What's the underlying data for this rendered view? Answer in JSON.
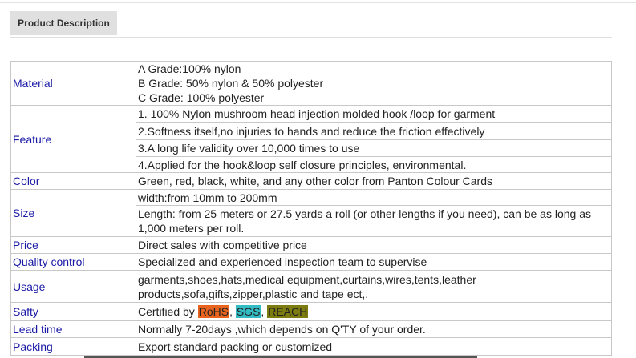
{
  "tab": {
    "label": "Product Description"
  },
  "rows": {
    "material": {
      "label": "Material",
      "lines": [
        "A Grade:100% nylon",
        "B Grade: 50% nylon & 50% polyester",
        "C  Grade: 100% polyester"
      ]
    },
    "feature": {
      "label": "Feature",
      "lines": [
        "1. 100% Nylon mushroom head injection molded hook /loop for garment",
        "2.Softness itself,no injuries to hands and reduce the friction effectively",
        "3.A long life validity over 10,000 times to use",
        "4.Applied for the hook&loop self closure principles, environmental."
      ]
    },
    "color": {
      "label": "Color",
      "value": "Green, red, black, white, and any other color from Panton Colour Cards"
    },
    "size": {
      "label": "Size",
      "lines": [
        "width:from 10mm to 200mm",
        "Length: from 25 meters or 27.5 yards a roll (or other lengths if you need), can be as long as 1,000 meters per roll."
      ]
    },
    "price": {
      "label": "Price",
      "value": "Direct sales with competitive price"
    },
    "quality": {
      "label": "Quality control",
      "value": "Specialized and experienced inspection team to supervise"
    },
    "usage": {
      "label": "Usage",
      "value": "garments,shoes,hats,medical equipment,curtains,wires,tents,leather products,sofa,gifts,zipper,plastic and tape ect,."
    },
    "safty": {
      "label": "Safty",
      "prefix": "Certified by ",
      "certs": [
        {
          "text": "RoHS",
          "color": "#e8641e"
        },
        {
          "text": "SGS",
          "color": "#33bcc4"
        },
        {
          "text": "REACH",
          "color": "#7c7c10"
        }
      ],
      "sep": ", "
    },
    "lead": {
      "label": "Lead time",
      "value": "Normally 7-20days ,which depends on Q'TY of your order."
    },
    "packing": {
      "label": "Packing",
      "value": "Export standard packing or customized"
    }
  }
}
